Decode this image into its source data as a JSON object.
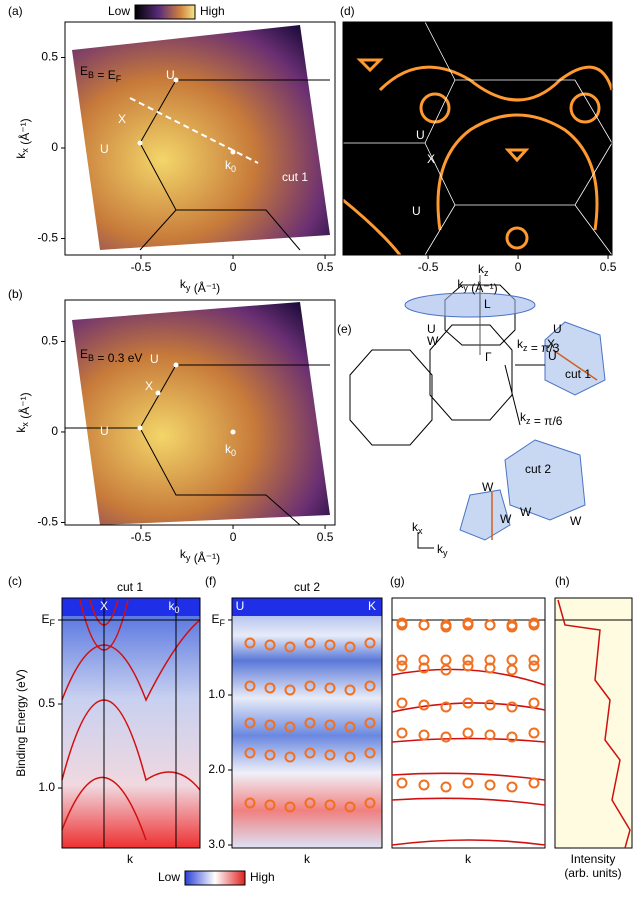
{
  "panels": {
    "a": {
      "label": "(a)",
      "colorbar": {
        "low": "Low",
        "high": "High"
      },
      "energy": "E_B = E_F",
      "points": [
        "U",
        "X",
        "U",
        "k_0"
      ],
      "cut": "cut 1",
      "x_axis": {
        "title": "k_y (Å⁻¹)",
        "xlim": [
          -0.913,
          0.554
        ],
        "ticks": [
          -0.5,
          0,
          0.5
        ]
      },
      "y_axis": {
        "title": "k_x (Å⁻¹)",
        "ylim": [
          0.696,
          -0.591
        ],
        "ticks": [
          0.5,
          0,
          -0.5
        ]
      }
    },
    "b": {
      "label": "(b)",
      "energy": "E_B = 0.3 eV",
      "points": [
        "U",
        "X",
        "U",
        "k_0"
      ],
      "x_axis": {
        "title": "k_y (Å⁻¹)",
        "xlim": [
          -0.913,
          0.554
        ],
        "ticks": [
          -0.5,
          0,
          0.5
        ]
      },
      "y_axis": {
        "title": "k_x (Å⁻¹)",
        "ylim": [
          0.729,
          -0.514
        ],
        "ticks": [
          0.5,
          0,
          -0.5
        ]
      }
    },
    "d": {
      "label": "(d)",
      "points": [
        "U",
        "X",
        "U"
      ],
      "x_axis": {
        "title": "k_y (Å⁻¹)",
        "xlim": [
          -0.973,
          0.522
        ],
        "ticks": [
          -0.5,
          0,
          0.5
        ]
      }
    },
    "e": {
      "label": "(e)",
      "kz": "k_z",
      "plane1": "k_z = π/3",
      "plane2": "k_z = π/6",
      "bz_points": [
        "U",
        "W",
        "Γ",
        "L"
      ],
      "cut1": {
        "title": "cut 1",
        "points": [
          "U",
          "X",
          "U"
        ]
      },
      "cut2": {
        "title": "cut 2",
        "points": [
          "W",
          "W",
          "W",
          "W"
        ]
      },
      "kx": "k_x",
      "ky": "k_y"
    },
    "c": {
      "label": "(c)",
      "cut": "cut 1",
      "points": [
        "X",
        "k_0"
      ],
      "x_title": "k",
      "colorbar": {
        "low": "Low",
        "high": "High"
      },
      "y_axis": {
        "title": "Binding Energy (eV)",
        "ylim": [
          -0.131,
          1.357
        ],
        "ticks": [
          {
            "value": 0,
            "label": "E_F"
          },
          0.5,
          {
            "value": 1,
            "label": "1.0"
          }
        ]
      }
    },
    "f": {
      "label": "(f)",
      "cut": "cut 2",
      "points": [
        "U",
        "K"
      ],
      "x_title": "k",
      "y_axis": {
        "ylim": [
          -0.293,
          3.04
        ],
        "ticks": [
          {
            "value": 0,
            "label": "E_F"
          },
          {
            "value": 1,
            "label": "1.0"
          },
          {
            "value": 2,
            "label": "2.0"
          },
          {
            "value": 3,
            "label": "3.0"
          }
        ]
      }
    },
    "g": {
      "label": "(g)",
      "x_title": "k"
    },
    "h": {
      "label": "(h)",
      "x_title": "Intensity",
      "x_subtitle": "(arb. units)"
    }
  }
}
